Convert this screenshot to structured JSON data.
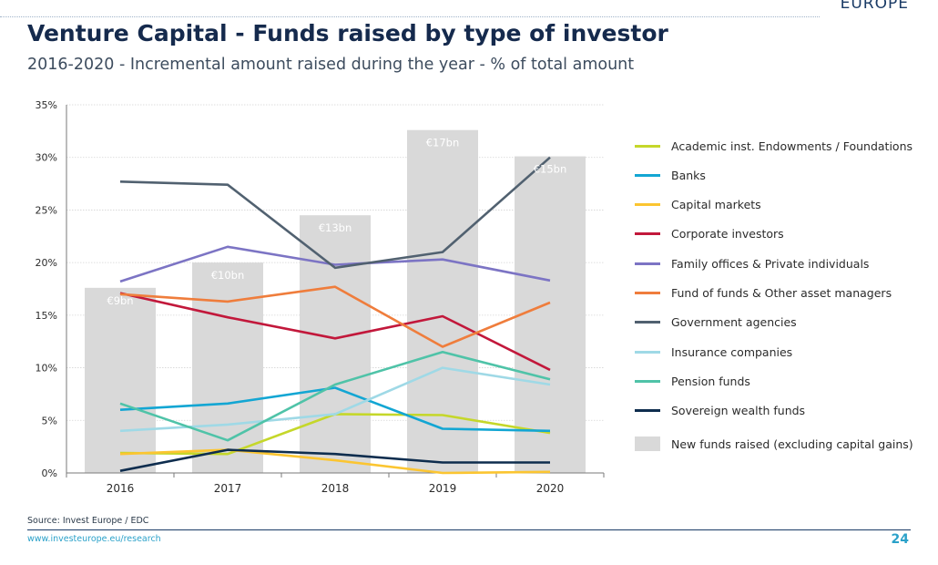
{
  "header": {
    "brand": "EUROPE",
    "title": "Venture Capital - Funds raised by type of investor",
    "subtitle": "2016-2020 - Incremental amount raised during the year - % of total amount"
  },
  "chart_data": {
    "type": "line",
    "x": [
      "2016",
      "2017",
      "2018",
      "2019",
      "2020"
    ],
    "ylim": [
      0,
      35
    ],
    "yticks": [
      "0%",
      "5%",
      "10%",
      "15%",
      "20%",
      "25%",
      "30%",
      "35%"
    ],
    "grid": true,
    "legend_position": "right",
    "bars": {
      "name": "New funds raised (excluding capital gains)",
      "values": [
        17.6,
        20.0,
        24.5,
        32.6,
        30.1
      ],
      "labels": [
        "€9bn",
        "€10bn",
        "€13bn",
        "€17bn",
        "€15bn"
      ],
      "color": "#d9d9d9"
    },
    "series": [
      {
        "name": "Academic inst. Endowments / Foundations",
        "color": "#c5d72a",
        "values": [
          1.9,
          1.8,
          5.6,
          5.5,
          3.8
        ]
      },
      {
        "name": "Banks",
        "color": "#13a6d3",
        "values": [
          6.0,
          6.6,
          8.1,
          4.2,
          4.0
        ]
      },
      {
        "name": "Capital markets",
        "color": "#fbc531",
        "values": [
          1.8,
          2.2,
          1.2,
          0.0,
          0.1
        ]
      },
      {
        "name": "Corporate investors",
        "color": "#c2183b",
        "values": [
          17.1,
          14.8,
          12.8,
          14.9,
          9.8
        ]
      },
      {
        "name": "Family offices & Private individuals",
        "color": "#7c74c4",
        "values": [
          18.2,
          21.5,
          19.8,
          20.3,
          18.3
        ]
      },
      {
        "name": "Fund of funds & Other asset managers",
        "color": "#ef7d3c",
        "values": [
          17.0,
          16.3,
          17.7,
          12.0,
          16.2
        ]
      },
      {
        "name": "Government agencies",
        "color": "#516170",
        "values": [
          27.7,
          27.4,
          19.5,
          21.0,
          30.0
        ]
      },
      {
        "name": "Insurance companies",
        "color": "#9fd9e6",
        "values": [
          4.0,
          4.6,
          5.6,
          10.0,
          8.4
        ]
      },
      {
        "name": "Pension funds",
        "color": "#4fc3a8",
        "values": [
          6.6,
          3.1,
          8.4,
          11.5,
          8.9
        ]
      },
      {
        "name": "Sovereign wealth funds",
        "color": "#0e2d4e",
        "values": [
          0.2,
          2.2,
          1.8,
          1.0,
          1.0
        ]
      }
    ]
  },
  "footer": {
    "source": "Source: Invest Europe / EDC",
    "url": "www.investeurope.eu/research",
    "page_number": "24"
  }
}
